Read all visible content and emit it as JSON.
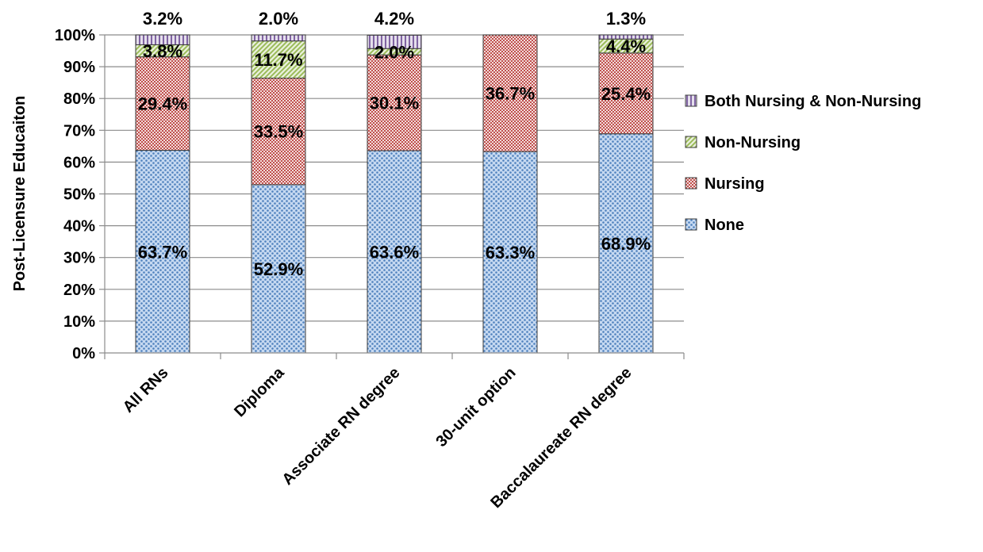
{
  "chart_data": {
    "type": "bar",
    "stacked": true,
    "ylabel": "Post-Licensure Educaiton",
    "ylim": [
      0,
      100
    ],
    "ytick_labels": [
      "0%",
      "10%",
      "20%",
      "30%",
      "40%",
      "50%",
      "60%",
      "70%",
      "80%",
      "90%",
      "100%"
    ],
    "categories": [
      "All RNs",
      "Diploma",
      "Associate RN degree",
      "30-unit option",
      "Baccalaureate RN degree"
    ],
    "series": [
      {
        "name": "None",
        "values": [
          63.7,
          52.9,
          63.6,
          63.3,
          68.9
        ],
        "labels": [
          "63.7%",
          "52.9%",
          "63.6%",
          "63.3%",
          "68.9%"
        ],
        "color": "#4f81bd",
        "pattern": "dots"
      },
      {
        "name": "Nursing",
        "values": [
          29.4,
          33.5,
          30.1,
          36.7,
          25.4
        ],
        "labels": [
          "29.4%",
          "33.5%",
          "30.1%",
          "36.7%",
          "25.4%"
        ],
        "color": "#c0504d",
        "pattern": "checker"
      },
      {
        "name": "Non-Nursing",
        "values": [
          3.8,
          11.7,
          2.0,
          0,
          4.4
        ],
        "labels": [
          "3.8%",
          "11.7%",
          "2.0%",
          "",
          "4.4%"
        ],
        "color": "#9bbb59",
        "pattern": "diagonal"
      },
      {
        "name": "Both Nursing & Non-Nursing",
        "values": [
          3.2,
          2.0,
          4.2,
          0,
          1.3
        ],
        "labels": [
          "3.2%",
          "2.0%",
          "4.2%",
          "",
          "1.3%"
        ],
        "color": "#8064a2",
        "pattern": "vertical"
      }
    ],
    "legend_order": [
      "Both Nursing & Non-Nursing",
      "Non-Nursing",
      "Nursing",
      "None"
    ],
    "legend_position": "right",
    "grid": true
  }
}
